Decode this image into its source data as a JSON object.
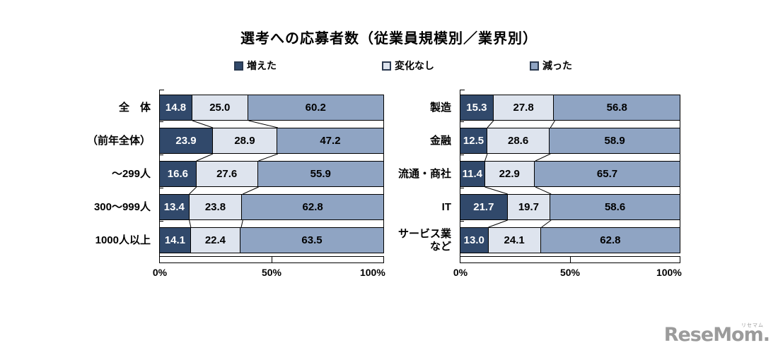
{
  "title": "選考への応募者数（従業員規模別／業界別）",
  "legend": [
    {
      "label": "増えた",
      "color": "#31496B"
    },
    {
      "label": "変化なし",
      "color": "#DEE4EE"
    },
    {
      "label": "減った",
      "color": "#8FA4C3"
    }
  ],
  "colors": {
    "increase": "#31496B",
    "no_change": "#DEE4EE",
    "decrease": "#8FA4C3",
    "segment_border": "#000000",
    "value_text_on_dark": "#FFFFFF",
    "value_text": "#000000",
    "logo_gray": "#9B9B9B"
  },
  "logo": {
    "text": "ReseMom.",
    "kana": "リセマム"
  },
  "chart_data": [
    {
      "type": "bar",
      "stacked": true,
      "orientation": "horizontal",
      "group": "従業員規模別",
      "categories": [
        "全　体",
        "（前年全体）",
        "～299人",
        "300～999人",
        "1000人以上"
      ],
      "series": [
        {
          "name": "増えた",
          "values": [
            14.8,
            23.9,
            16.6,
            13.4,
            14.1
          ]
        },
        {
          "name": "変化なし",
          "values": [
            25.0,
            28.9,
            27.6,
            23.8,
            22.4
          ]
        },
        {
          "name": "減った",
          "values": [
            60.2,
            47.2,
            55.9,
            62.8,
            63.5
          ]
        }
      ],
      "xlim": [
        0,
        100
      ],
      "tick_labels": [
        "0%",
        "50%",
        "100%"
      ],
      "grid": false,
      "legend_position": "top"
    },
    {
      "type": "bar",
      "stacked": true,
      "orientation": "horizontal",
      "group": "業界別",
      "categories": [
        "製造",
        "金融",
        "流通・商社",
        "IT",
        "サービス業\nなど"
      ],
      "series": [
        {
          "name": "増えた",
          "values": [
            15.3,
            12.5,
            11.4,
            21.7,
            13.0
          ]
        },
        {
          "name": "変化なし",
          "values": [
            27.8,
            28.6,
            22.9,
            19.7,
            24.1
          ]
        },
        {
          "name": "減った",
          "values": [
            56.8,
            58.9,
            65.7,
            58.6,
            62.8
          ]
        }
      ],
      "xlim": [
        0,
        100
      ],
      "tick_labels": [
        "0%",
        "50%",
        "100%"
      ],
      "grid": false,
      "legend_position": "top"
    }
  ]
}
